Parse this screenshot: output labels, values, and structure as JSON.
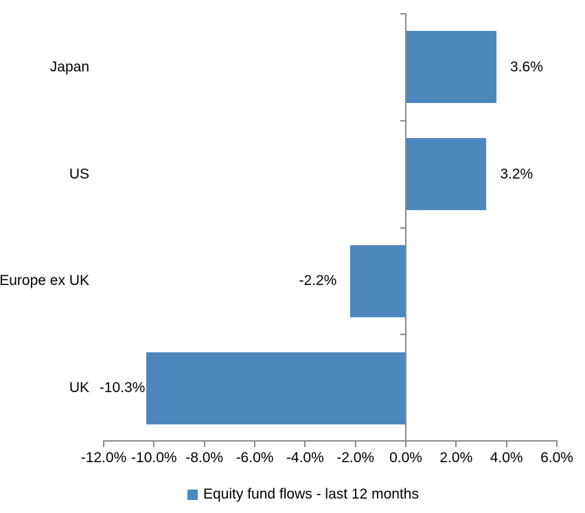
{
  "chart_data": {
    "type": "bar",
    "orientation": "horizontal",
    "title": "",
    "categories": [
      "Japan",
      "US",
      "Europe ex UK",
      "UK"
    ],
    "values": [
      3.6,
      3.2,
      -2.2,
      -10.3
    ],
    "data_labels": [
      "3.6%",
      "3.2%",
      "-2.2%",
      "-10.3%"
    ],
    "series_name": "Equity fund flows - last 12 months",
    "xlim": [
      -12,
      6
    ],
    "xtick_step": 2,
    "xtick_labels": [
      "-12.0%",
      "-10.0%",
      "-8.0%",
      "-6.0%",
      "-4.0%",
      "-2.0%",
      "0.0%",
      "2.0%",
      "4.0%",
      "6.0%"
    ],
    "grid": false,
    "legend_position": "bottom",
    "bar_color": "#4E87BD",
    "axis_color": "#8A8A8A",
    "text_color": "#000000"
  }
}
